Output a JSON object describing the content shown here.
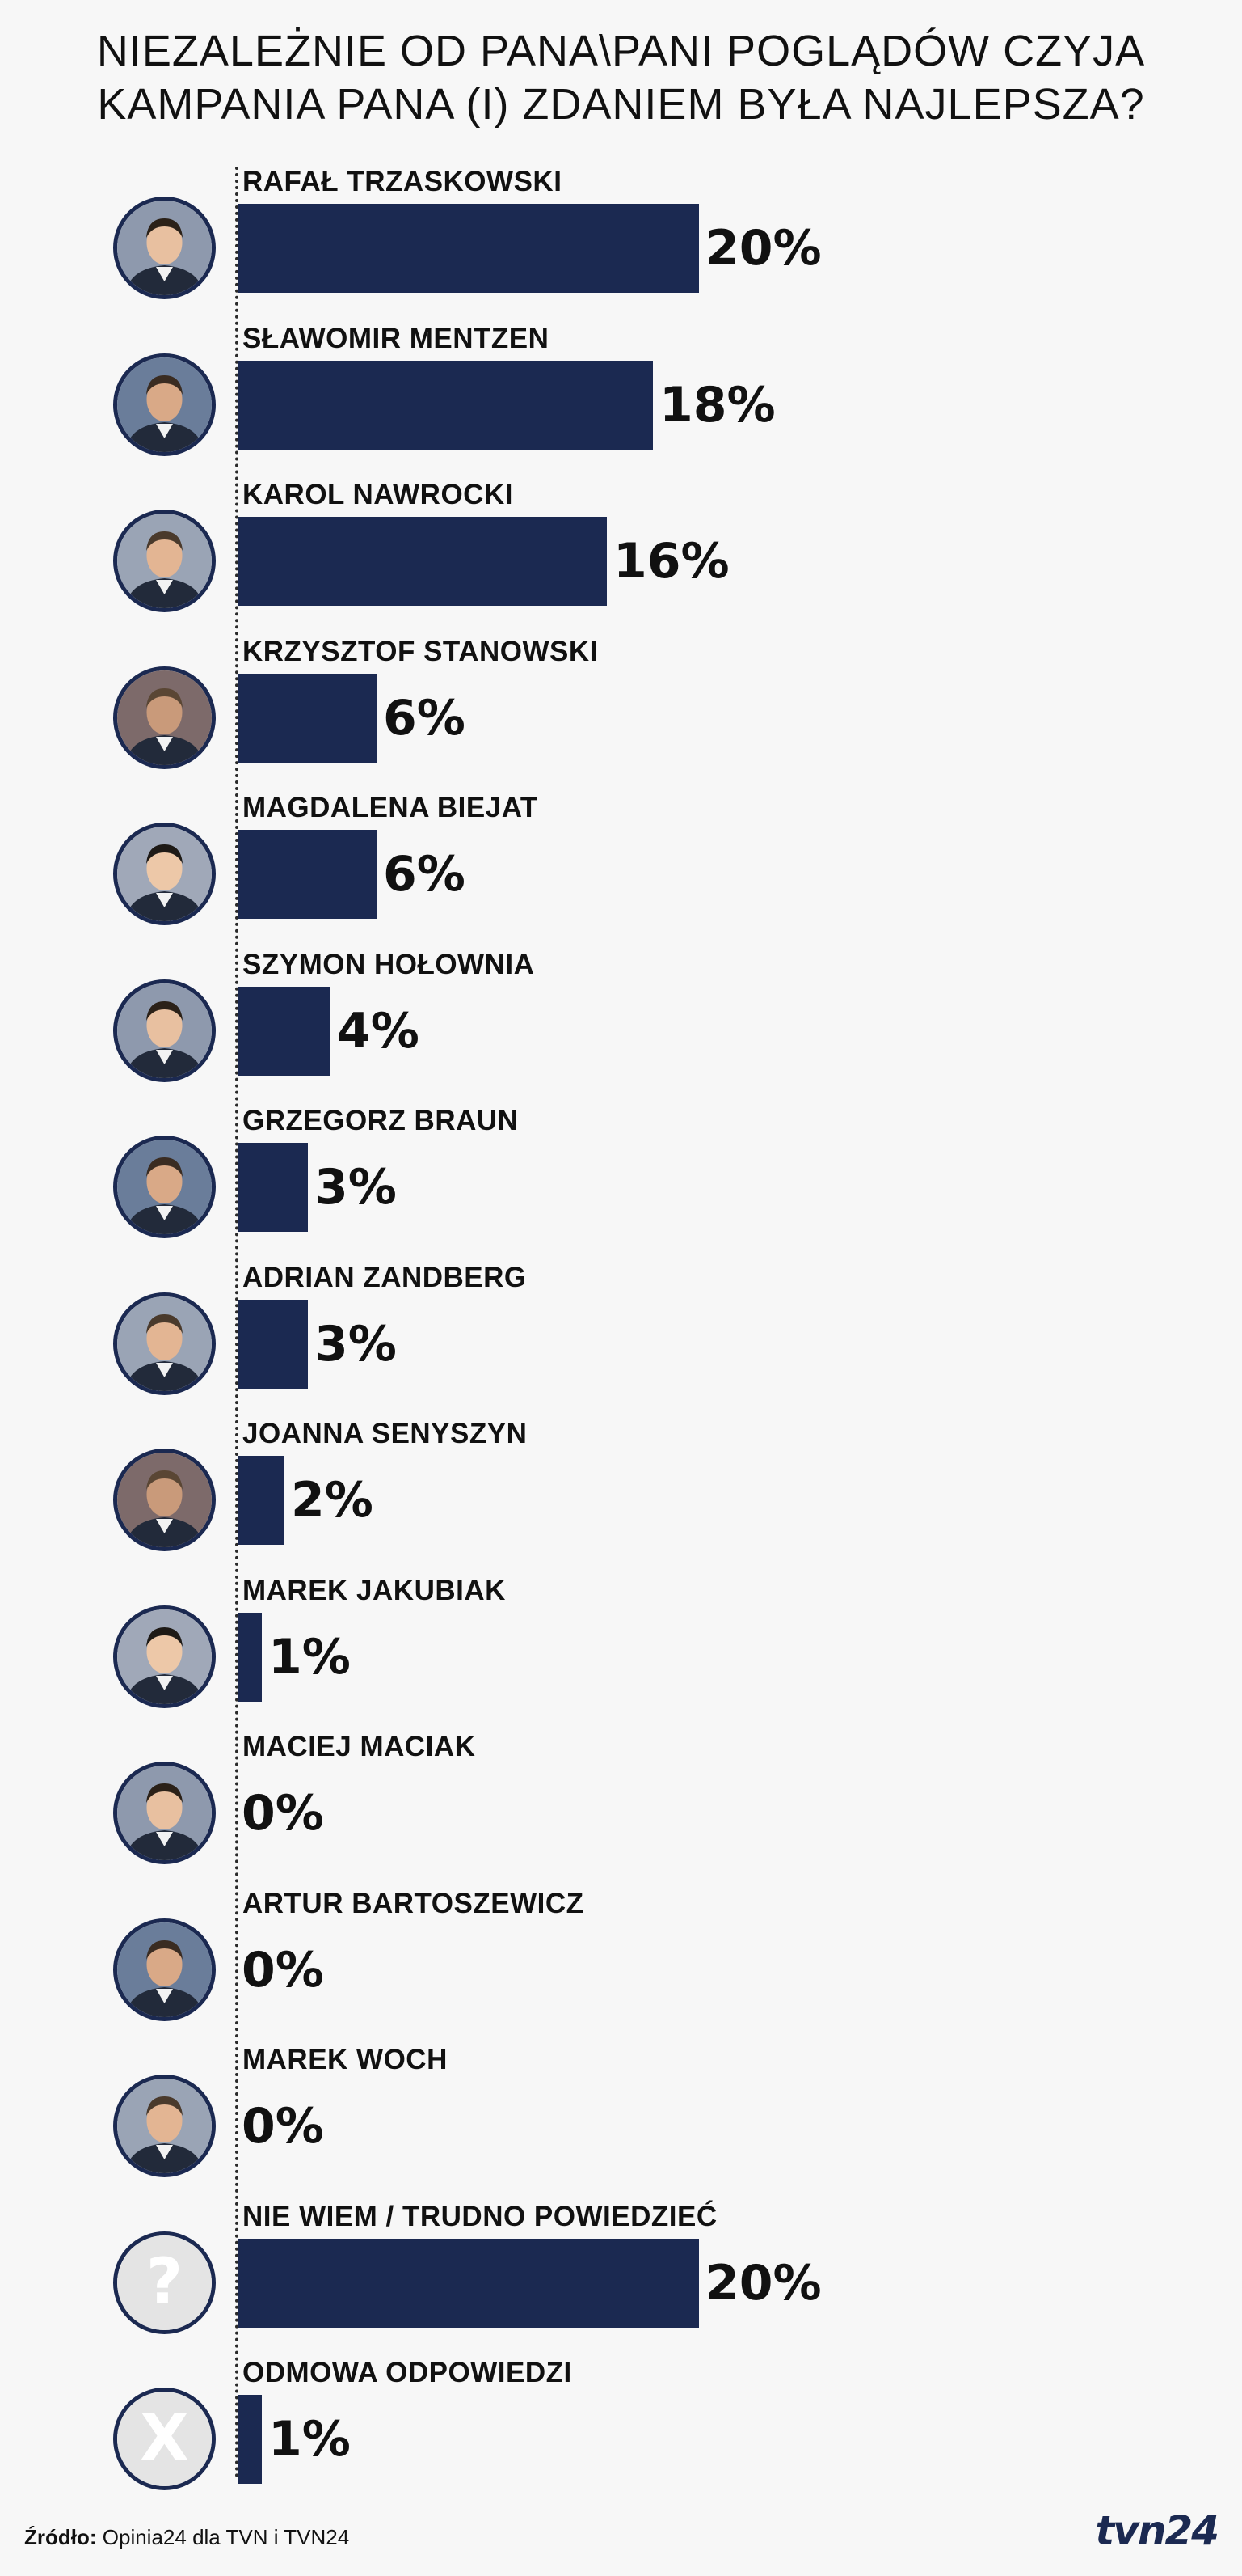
{
  "title_lines": [
    "NIEZALEŻNIE OD PANA\\PANI POGLĄDÓW CZYJA",
    "KAMPANIA PANA (I) ZDANIEM BYŁA NAJLEPSZA?"
  ],
  "source_label": "Źródło:",
  "source_text": "Opinia24 dla TVN i TVN24",
  "logo_text": "tvn24",
  "colors": {
    "bar": "#1b2951",
    "background": "#f7f7f7",
    "text": "#111111"
  },
  "chart_data": {
    "type": "bar",
    "orientation": "horizontal",
    "title": "NIEZALEŻNIE OD PANA\\PANI POGLĄDÓW CZYJA KAMPANIA PANA (I) ZDANIEM BYŁA NAJLEPSZA?",
    "categories": [
      "RAFAŁ TRZASKOWSKI",
      "SŁAWOMIR MENTZEN",
      "KAROL NAWROCKI",
      "KRZYSZTOF STANOWSKI",
      "MAGDALENA BIEJAT",
      "SZYMON HOŁOWNIA",
      "GRZEGORZ BRAUN",
      "ADRIAN ZANDBERG",
      "JOANNA SENYSZYN",
      "MAREK JAKUBIAK",
      "MACIEJ MACIAK",
      "ARTUR BARTOSZEWICZ",
      "MAREK WOCH",
      "NIE WIEM / TRUDNO POWIEDZIEĆ",
      "ODMOWA ODPOWIEDZI"
    ],
    "values": [
      20,
      18,
      16,
      6,
      6,
      4,
      3,
      3,
      2,
      1,
      0,
      0,
      0,
      20,
      1
    ],
    "value_labels": [
      "20%",
      "18%",
      "16%",
      "6%",
      "6%",
      "4%",
      "3%",
      "3%",
      "2%",
      "1%",
      "0%",
      "0%",
      "0%",
      "20%",
      "1%"
    ],
    "avatar_icons": [
      "person-photo",
      "person-photo",
      "person-photo",
      "person-photo",
      "person-photo",
      "person-photo",
      "person-photo",
      "person-photo",
      "person-photo",
      "person-photo",
      "person-photo",
      "person-photo",
      "person-photo",
      "question-mark-icon",
      "x-mark-icon"
    ],
    "unit": "%",
    "xlim": [
      0,
      20
    ],
    "grid": false,
    "legend": "none"
  }
}
